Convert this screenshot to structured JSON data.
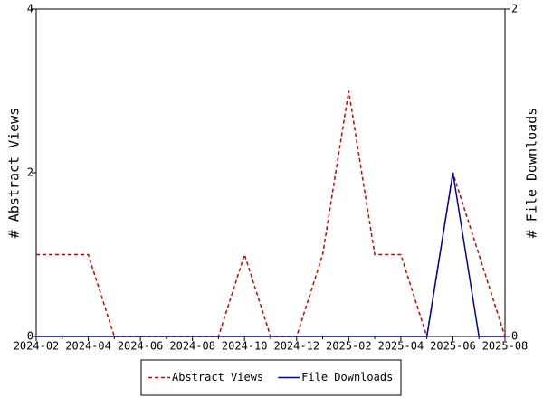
{
  "chart_data": {
    "type": "line",
    "categories": [
      "2024-02",
      null,
      "2024-04",
      null,
      "2024-06",
      null,
      "2024-08",
      null,
      "2024-10",
      null,
      "2024-12",
      null,
      "2025-02",
      null,
      "2025-04",
      null,
      "2025-06",
      null,
      "2025-08"
    ],
    "series": [
      {
        "name": "Abstract Views",
        "color": "#cc0000",
        "dash": true,
        "values": [
          1,
          1,
          1,
          0,
          0,
          0,
          0,
          0,
          1,
          0,
          0,
          1,
          3,
          1,
          1,
          0,
          2,
          1,
          0
        ]
      },
      {
        "name": "File Downloads",
        "color": "#0000aa",
        "dash": false,
        "axis": "y2",
        "values": [
          0,
          0,
          0,
          0,
          0,
          0,
          0,
          0,
          0,
          0,
          0,
          0,
          0,
          0,
          0,
          0,
          1,
          0,
          0
        ]
      }
    ],
    "ylabel": "# Abstract Views",
    "y2label": "# File Downloads",
    "ylim": [
      0,
      4
    ],
    "yticks": [
      0,
      2,
      4
    ],
    "y2lim": [
      0,
      2
    ],
    "y2ticks": [
      0,
      2
    ],
    "legend": "bottom"
  }
}
